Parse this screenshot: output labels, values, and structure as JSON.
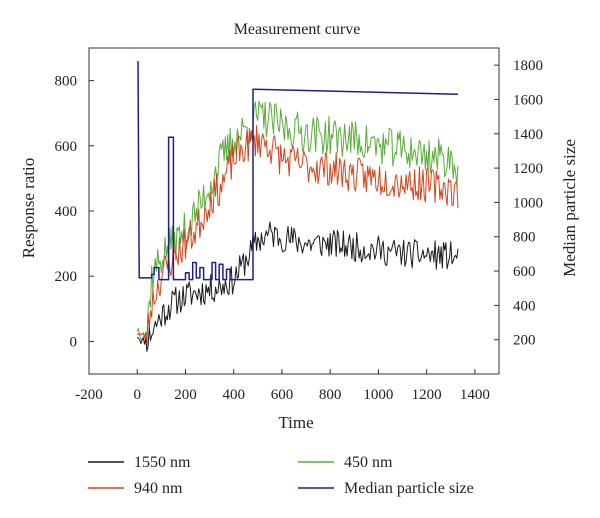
{
  "chart_data": {
    "type": "line",
    "title": "Measurement curve",
    "xlabel": "Time",
    "ylabel": "Response ratio",
    "y2label": "Median particle size",
    "xlim": [
      -200,
      1500
    ],
    "ylim": [
      -100,
      900
    ],
    "y2lim": [
      0,
      1900
    ],
    "xticks": [
      -200,
      0,
      200,
      400,
      600,
      800,
      1000,
      1200,
      1400
    ],
    "yticks": [
      0,
      200,
      400,
      600,
      800
    ],
    "y2ticks": [
      200,
      400,
      600,
      800,
      1000,
      1200,
      1400,
      1600,
      1800
    ],
    "legend_position": "bottom",
    "series": [
      {
        "name": "1550 nm",
        "axis": "left",
        "color": "#1a1a1a",
        "anchors": [
          [
            0,
            20
          ],
          [
            20,
            0
          ],
          [
            40,
            5
          ],
          [
            60,
            30
          ],
          [
            100,
            80
          ],
          [
            150,
            120
          ],
          [
            200,
            140
          ],
          [
            250,
            150
          ],
          [
            300,
            160
          ],
          [
            350,
            170
          ],
          [
            400,
            190
          ],
          [
            450,
            250
          ],
          [
            500,
            310
          ],
          [
            550,
            330
          ],
          [
            600,
            320
          ],
          [
            700,
            300
          ],
          [
            800,
            300
          ],
          [
            900,
            290
          ],
          [
            1000,
            280
          ],
          [
            1100,
            270
          ],
          [
            1200,
            265
          ],
          [
            1300,
            262
          ],
          [
            1330,
            250
          ]
        ],
        "noise": 45,
        "seed": 11
      },
      {
        "name": "940 nm",
        "axis": "left",
        "color": "#d2451e",
        "anchors": [
          [
            0,
            30
          ],
          [
            20,
            15
          ],
          [
            40,
            20
          ],
          [
            60,
            120
          ],
          [
            100,
            200
          ],
          [
            150,
            260
          ],
          [
            200,
            300
          ],
          [
            250,
            350
          ],
          [
            300,
            430
          ],
          [
            350,
            480
          ],
          [
            400,
            560
          ],
          [
            450,
            600
          ],
          [
            500,
            620
          ],
          [
            550,
            600
          ],
          [
            600,
            560
          ],
          [
            700,
            540
          ],
          [
            800,
            530
          ],
          [
            900,
            510
          ],
          [
            1000,
            500
          ],
          [
            1100,
            490
          ],
          [
            1200,
            480
          ],
          [
            1300,
            470
          ],
          [
            1330,
            450
          ]
        ],
        "noise": 55,
        "seed": 23
      },
      {
        "name": "450 nm",
        "axis": "left",
        "color": "#5aac3a",
        "anchors": [
          [
            0,
            40
          ],
          [
            20,
            20
          ],
          [
            40,
            30
          ],
          [
            60,
            200
          ],
          [
            100,
            260
          ],
          [
            150,
            300
          ],
          [
            200,
            340
          ],
          [
            250,
            400
          ],
          [
            300,
            480
          ],
          [
            350,
            560
          ],
          [
            400,
            620
          ],
          [
            450,
            650
          ],
          [
            500,
            690
          ],
          [
            550,
            680
          ],
          [
            600,
            660
          ],
          [
            700,
            640
          ],
          [
            800,
            630
          ],
          [
            900,
            620
          ],
          [
            1000,
            600
          ],
          [
            1100,
            590
          ],
          [
            1200,
            570
          ],
          [
            1300,
            560
          ],
          [
            1330,
            530
          ]
        ],
        "noise": 60,
        "seed": 37
      },
      {
        "name": "Median particle size",
        "axis": "right",
        "color": "#1f1f8c",
        "points": [
          [
            0,
            1820
          ],
          [
            3,
            1820
          ],
          [
            8,
            560
          ],
          [
            60,
            560
          ],
          [
            60,
            580
          ],
          [
            70,
            580
          ],
          [
            70,
            620
          ],
          [
            90,
            620
          ],
          [
            90,
            550
          ],
          [
            130,
            550
          ],
          [
            130,
            1380
          ],
          [
            150,
            1380
          ],
          [
            150,
            550
          ],
          [
            200,
            550
          ],
          [
            200,
            590
          ],
          [
            215,
            590
          ],
          [
            215,
            550
          ],
          [
            230,
            550
          ],
          [
            230,
            650
          ],
          [
            245,
            650
          ],
          [
            245,
            560
          ],
          [
            260,
            560
          ],
          [
            260,
            620
          ],
          [
            275,
            620
          ],
          [
            275,
            550
          ],
          [
            310,
            550
          ],
          [
            310,
            650
          ],
          [
            325,
            650
          ],
          [
            325,
            550
          ],
          [
            340,
            550
          ],
          [
            340,
            640
          ],
          [
            355,
            640
          ],
          [
            355,
            550
          ],
          [
            370,
            550
          ],
          [
            370,
            610
          ],
          [
            385,
            610
          ],
          [
            385,
            550
          ],
          [
            480,
            550
          ],
          [
            480,
            1660
          ],
          [
            1330,
            1630
          ]
        ]
      }
    ]
  }
}
